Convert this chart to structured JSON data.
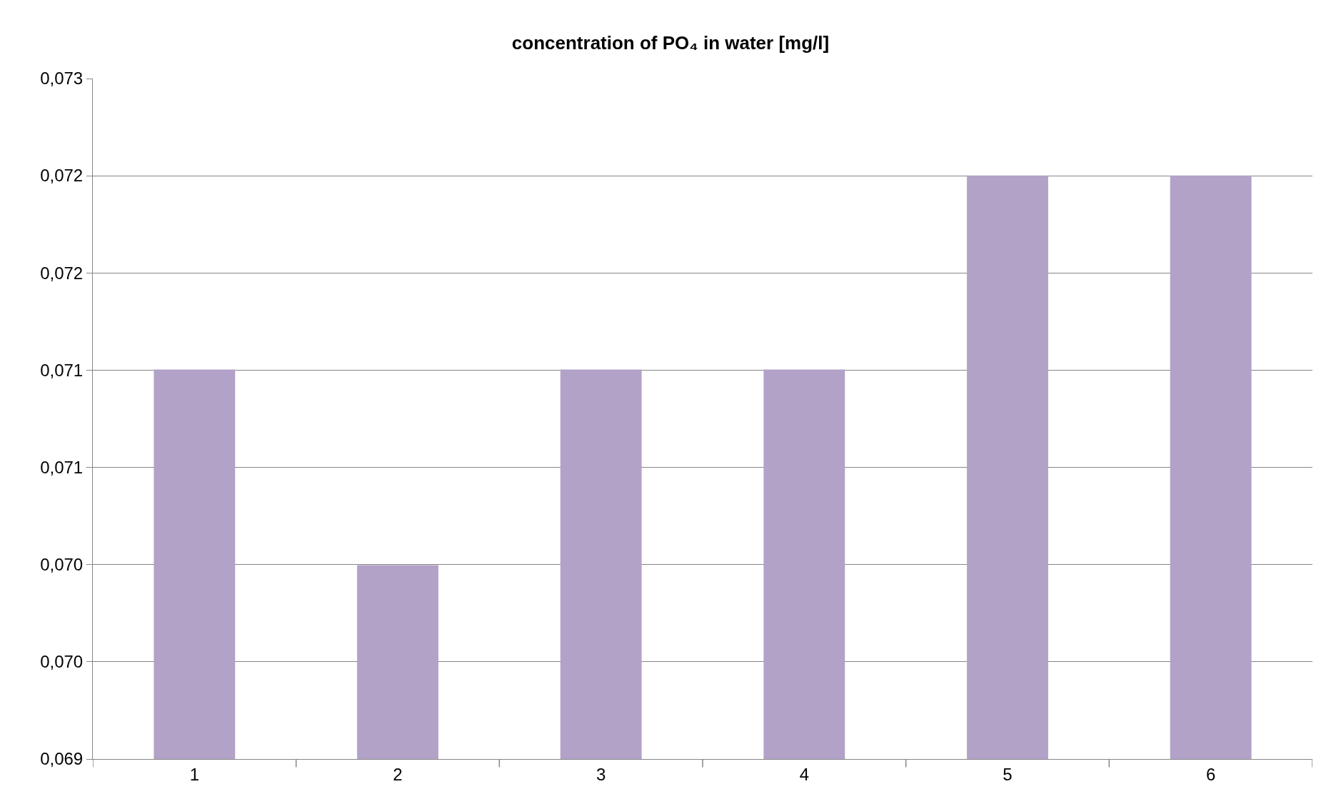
{
  "chart_data": {
    "type": "bar",
    "title": "concentration of PO₄ in water [mg/l]",
    "categories": [
      "1",
      "2",
      "3",
      "4",
      "5",
      "6"
    ],
    "values": [
      0.07129,
      0.07014,
      0.07129,
      0.07129,
      0.07243,
      0.07243
    ],
    "color": "#b2a2c7",
    "ylim": [
      0.069,
      0.073
    ],
    "yticks": [
      {
        "value": 0.069,
        "label": "0,069"
      },
      {
        "value": 0.069571,
        "label": "0,070"
      },
      {
        "value": 0.070143,
        "label": "0,070"
      },
      {
        "value": 0.070714,
        "label": "0,071"
      },
      {
        "value": 0.071286,
        "label": "0,071"
      },
      {
        "value": 0.071857,
        "label": "0,072"
      },
      {
        "value": 0.072429,
        "label": "0,072"
      },
      {
        "value": 0.073,
        "label": "0,073"
      }
    ],
    "grid": "y"
  }
}
